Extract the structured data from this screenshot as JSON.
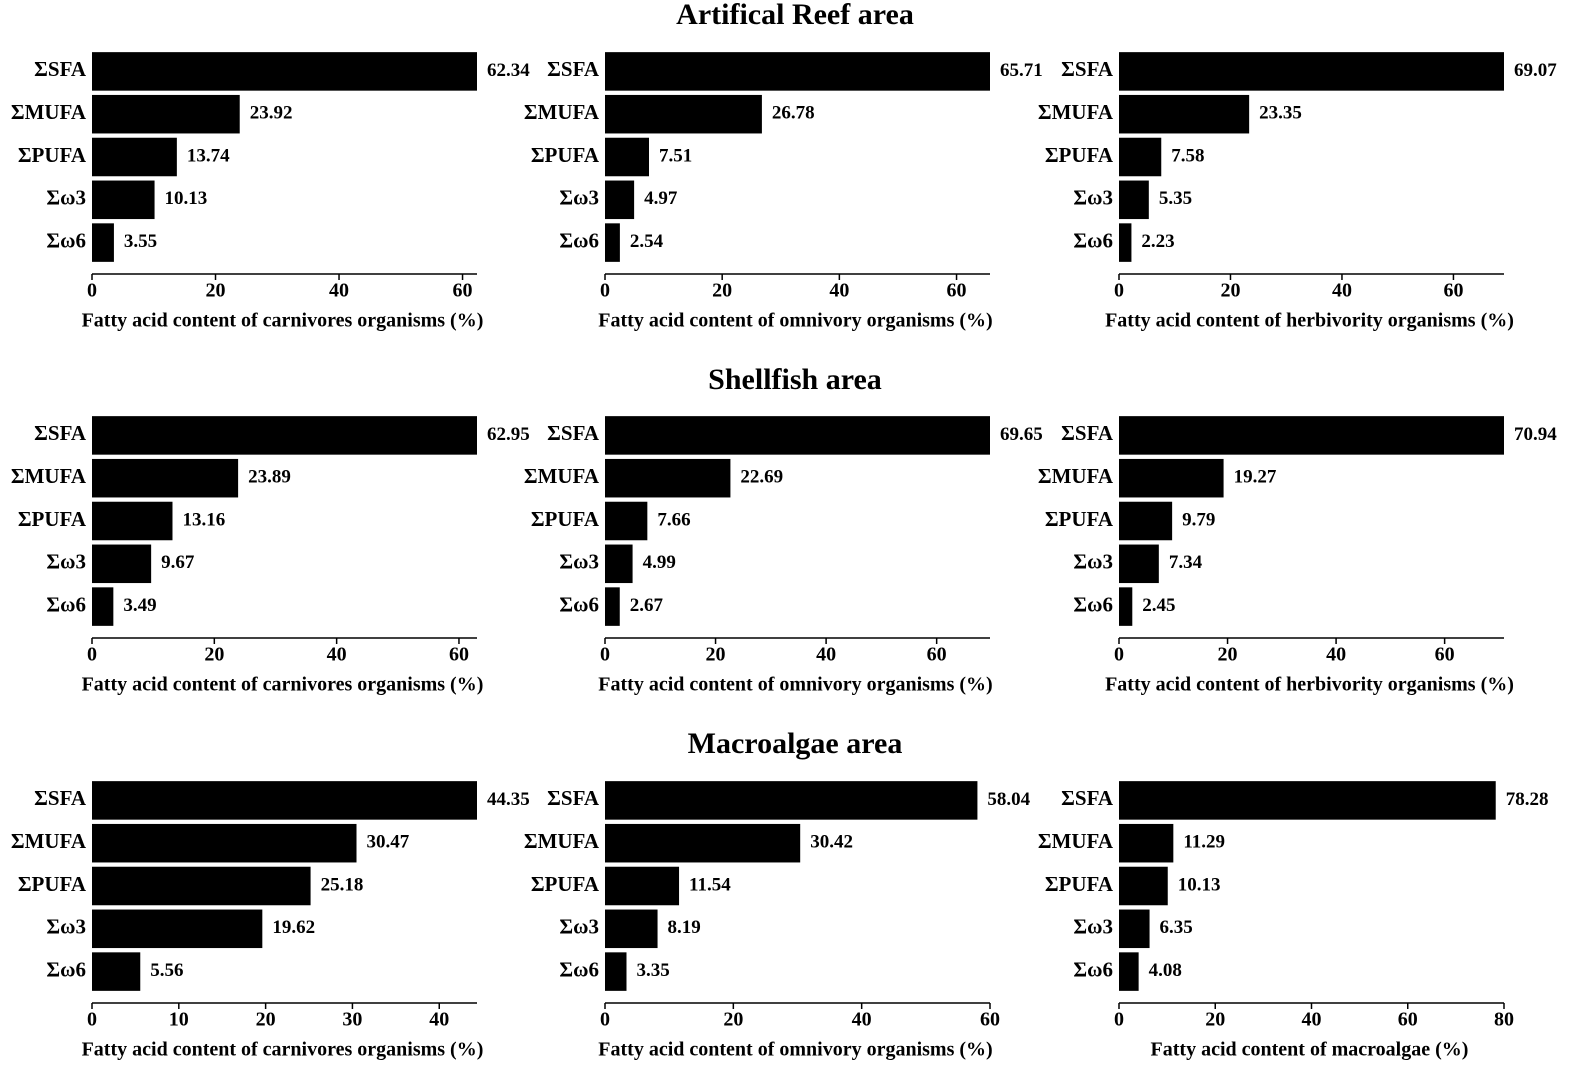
{
  "row_titles": [
    "Artifical Reef area",
    "Shellfish area",
    "Macroalgae area"
  ],
  "chart_data": [
    {
      "type": "bar",
      "xlabel": "Fatty acid content of carnivores organisms (%)",
      "categories": [
        "ΣSFA",
        "ΣMUFA",
        "ΣPUFA",
        "Σω3",
        "Σω6"
      ],
      "values": [
        62.34,
        23.92,
        13.74,
        10.13,
        3.55
      ],
      "color": "#000000",
      "xlim": [
        0,
        62.34
      ],
      "xticks": [
        0,
        20,
        40,
        60
      ]
    },
    {
      "type": "bar",
      "xlabel": "Fatty acid content of omnivory organisms (%)",
      "categories": [
        "ΣSFA",
        "ΣMUFA",
        "ΣPUFA",
        "Σω3",
        "Σω6"
      ],
      "values": [
        65.71,
        26.78,
        7.51,
        4.97,
        2.54
      ],
      "color": "#000000",
      "xlim": [
        0,
        65.71
      ],
      "xticks": [
        0,
        20,
        40,
        60
      ]
    },
    {
      "type": "bar",
      "xlabel": "Fatty acid content of herbivority organisms (%)",
      "categories": [
        "ΣSFA",
        "ΣMUFA",
        "ΣPUFA",
        "Σω3",
        "Σω6"
      ],
      "values": [
        69.07,
        23.35,
        7.58,
        5.35,
        2.23
      ],
      "color": "#000000",
      "xlim": [
        0,
        69.07
      ],
      "xticks": [
        0,
        20,
        40,
        60
      ]
    },
    {
      "type": "bar",
      "xlabel": "Fatty acid content of carnivores organisms (%)",
      "categories": [
        "ΣSFA",
        "ΣMUFA",
        "ΣPUFA",
        "Σω3",
        "Σω6"
      ],
      "values": [
        62.95,
        23.89,
        13.16,
        9.67,
        3.49
      ],
      "color": "#000000",
      "xlim": [
        0,
        62.95
      ],
      "xticks": [
        0,
        20,
        40,
        60
      ]
    },
    {
      "type": "bar",
      "xlabel": "Fatty acid content of omnivory organisms (%)",
      "categories": [
        "ΣSFA",
        "ΣMUFA",
        "ΣPUFA",
        "Σω3",
        "Σω6"
      ],
      "values": [
        69.65,
        22.69,
        7.66,
        4.99,
        2.67
      ],
      "color": "#000000",
      "xlim": [
        0,
        69.65
      ],
      "xticks": [
        0,
        20,
        40,
        60
      ]
    },
    {
      "type": "bar",
      "xlabel": "Fatty acid content of herbivority organisms (%)",
      "categories": [
        "ΣSFA",
        "ΣMUFA",
        "ΣPUFA",
        "Σω3",
        "Σω6"
      ],
      "values": [
        70.94,
        19.27,
        9.79,
        7.34,
        2.45
      ],
      "color": "#000000",
      "xlim": [
        0,
        70.94
      ],
      "xticks": [
        0,
        20,
        40,
        60
      ]
    },
    {
      "type": "bar",
      "xlabel": "Fatty acid content of carnivores organisms (%)",
      "categories": [
        "ΣSFA",
        "ΣMUFA",
        "ΣPUFA",
        "Σω3",
        "Σω6"
      ],
      "values": [
        44.35,
        30.47,
        25.18,
        19.62,
        5.56
      ],
      "color": "#000000",
      "xlim": [
        0,
        44.35
      ],
      "xticks": [
        0,
        10,
        20,
        30,
        40
      ]
    },
    {
      "type": "bar",
      "xlabel": "Fatty acid content of omnivory organisms (%)",
      "categories": [
        "ΣSFA",
        "ΣMUFA",
        "ΣPUFA",
        "Σω3",
        "Σω6"
      ],
      "values": [
        58.04,
        30.42,
        11.54,
        8.19,
        3.35
      ],
      "color": "#000000",
      "xlim": [
        0,
        60
      ],
      "xticks": [
        0,
        20,
        40,
        60
      ]
    },
    {
      "type": "bar",
      "xlabel": "Fatty acid content of macroalgae (%)",
      "categories": [
        "ΣSFA",
        "ΣMUFA",
        "ΣPUFA",
        "Σω3",
        "Σω6"
      ],
      "values": [
        78.28,
        11.29,
        10.13,
        6.35,
        4.08
      ],
      "color": "#000000",
      "xlim": [
        0,
        80
      ],
      "xticks": [
        0,
        20,
        40,
        60,
        80
      ]
    }
  ]
}
